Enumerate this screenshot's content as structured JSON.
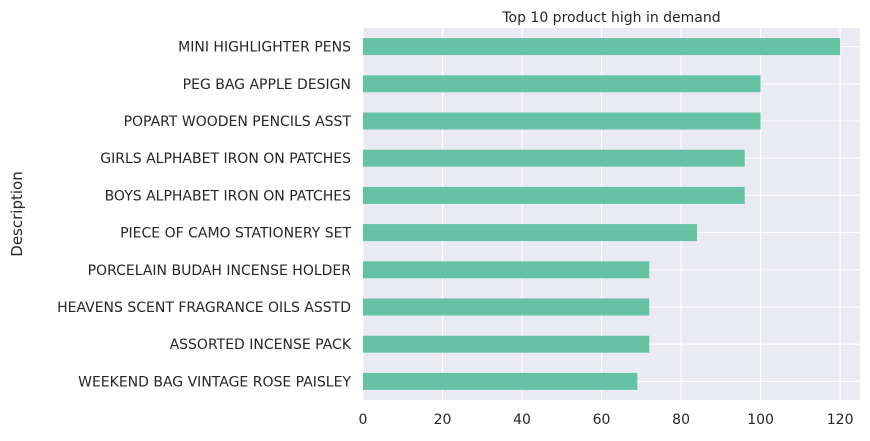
{
  "chart_data": {
    "type": "bar",
    "orientation": "horizontal",
    "title": "Top 10 product high in demand",
    "xlabel": "",
    "ylabel": "Description",
    "xlim": [
      0,
      125
    ],
    "xticks": [
      0,
      20,
      40,
      60,
      80,
      100,
      120
    ],
    "grid": true,
    "categories": [
      "MINI HIGHLIGHTER PENS",
      "PEG BAG APPLE DESIGN",
      "POPART WOODEN PENCILS ASST",
      "GIRLS ALPHABET IRON ON PATCHES ",
      "BOYS ALPHABET IRON ON PATCHES",
      "PIECE OF CAMO STATIONERY SET",
      "PORCELAIN BUDAH INCENSE HOLDER",
      "HEAVENS SCENT FRAGRANCE OILS ASSTD",
      "ASSORTED INCENSE PACK",
      "WEEKEND BAG VINTAGE ROSE PAISLEY"
    ],
    "values": [
      120,
      100,
      100,
      96,
      96,
      84,
      72,
      72,
      72,
      69
    ],
    "colors": {
      "bar": "#66c2a5",
      "plot_background": "#eaeaf2",
      "grid": "#ffffff"
    }
  }
}
